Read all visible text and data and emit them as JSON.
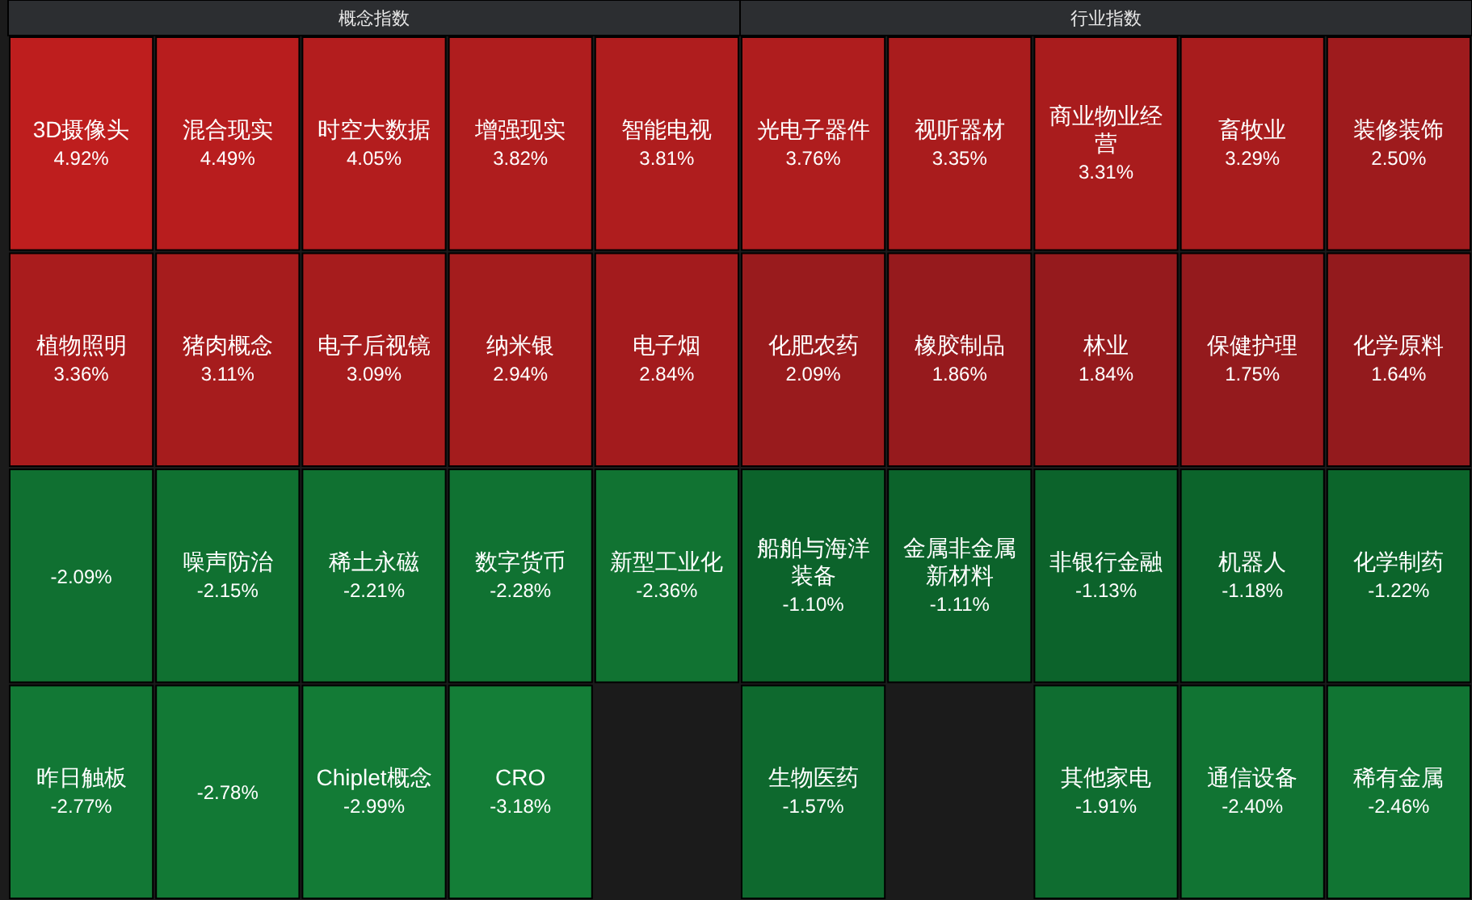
{
  "chart_data": [
    {
      "type": "other",
      "title": "概念指数",
      "categories": [
        "3D摄像头",
        "混合现实",
        "时空大数据",
        "增强现实",
        "智能电视",
        "植物照明",
        "猪肉概念",
        "电子后视镜",
        "纳米银",
        "电子烟",
        null,
        "噪声防治",
        "稀土永磁",
        "数字货币",
        "新型工业化",
        "昨日触板",
        null,
        "Chiplet概念",
        "CRO",
        null
      ],
      "values": [
        4.92,
        4.49,
        4.05,
        3.82,
        3.81,
        3.36,
        3.11,
        3.09,
        2.94,
        2.84,
        -2.09,
        -2.15,
        -2.21,
        -2.28,
        -2.36,
        -2.77,
        -2.78,
        -2.99,
        -3.18,
        null
      ],
      "value_labels": [
        "4.92%",
        "4.49%",
        "4.05%",
        "3.82%",
        "3.81%",
        "3.36%",
        "3.11%",
        "3.09%",
        "2.94%",
        "2.84%",
        "-2.09%",
        "-2.15%",
        "-2.21%",
        "-2.28%",
        "-2.36%",
        "-2.77%",
        "-2.78%",
        "-2.99%",
        "-3.18%",
        null
      ]
    },
    {
      "type": "other",
      "title": "行业指数",
      "categories": [
        "光电子器件",
        "视听器材",
        "商业物业经营",
        "畜牧业",
        "装修装饰",
        "化肥农药",
        "橡胶制品",
        "林业",
        "保健护理",
        "化学原料",
        "船舶与海洋装备",
        "金属非金属新材料",
        "非银行金融",
        "机器人",
        "化学制药",
        "生物医药",
        null,
        "其他家电",
        "通信设备",
        "稀有金属"
      ],
      "values": [
        3.76,
        3.35,
        3.31,
        3.29,
        2.5,
        2.09,
        1.86,
        1.84,
        1.75,
        1.64,
        -1.1,
        -1.11,
        -1.13,
        -1.18,
        -1.22,
        -1.57,
        null,
        -1.91,
        -2.4,
        -2.46
      ],
      "value_labels": [
        "3.76%",
        "3.35%",
        "3.31%",
        "3.29%",
        "2.50%",
        "2.09%",
        "1.86%",
        "1.84%",
        "1.75%",
        "1.64%",
        "-1.10%",
        "-1.11%",
        "-1.13%",
        "-1.18%",
        "-1.22%",
        "-1.57%",
        null,
        "-1.91%",
        "-2.40%",
        "-2.46%"
      ]
    }
  ]
}
